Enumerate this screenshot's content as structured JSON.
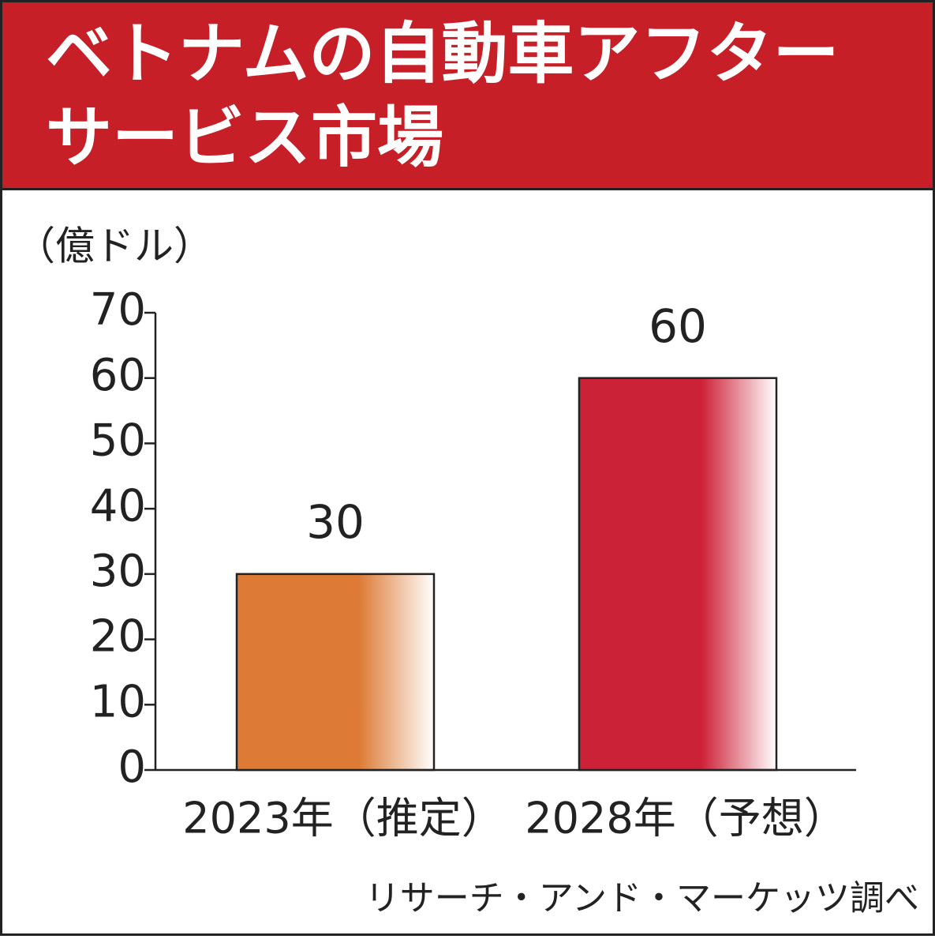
{
  "chart_data": {
    "type": "bar",
    "title": [
      "ベトナムの自動車アフター",
      "サービス市場"
    ],
    "y_label": "（億ドル）",
    "categories": [
      "2023年（推定）",
      "2028年（予想）"
    ],
    "values": [
      30,
      60
    ],
    "colors": [
      "#dd7b36",
      "#cc2237"
    ],
    "ylim": [
      0,
      70
    ],
    "yticks": [
      0,
      10,
      20,
      30,
      40,
      50,
      60,
      70
    ],
    "source": "リサーチ・アンド・マーケッツ調べ"
  }
}
